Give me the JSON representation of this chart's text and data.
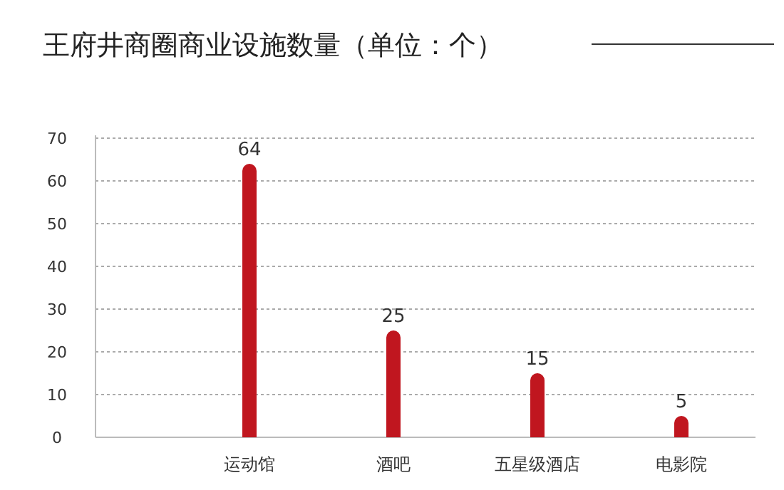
{
  "chart_data": {
    "type": "bar",
    "title": "王府井商圈商业设施数量（单位：个）",
    "categories": [
      "运动馆",
      "酒吧",
      "五星级酒店",
      "电影院"
    ],
    "values": [
      64,
      25,
      15,
      5
    ],
    "color": "#c0161f",
    "ylim": [
      0,
      70
    ],
    "yticks": [
      0,
      10,
      20,
      30,
      40,
      50,
      60,
      70
    ],
    "grid": "y",
    "data_labels": true
  }
}
